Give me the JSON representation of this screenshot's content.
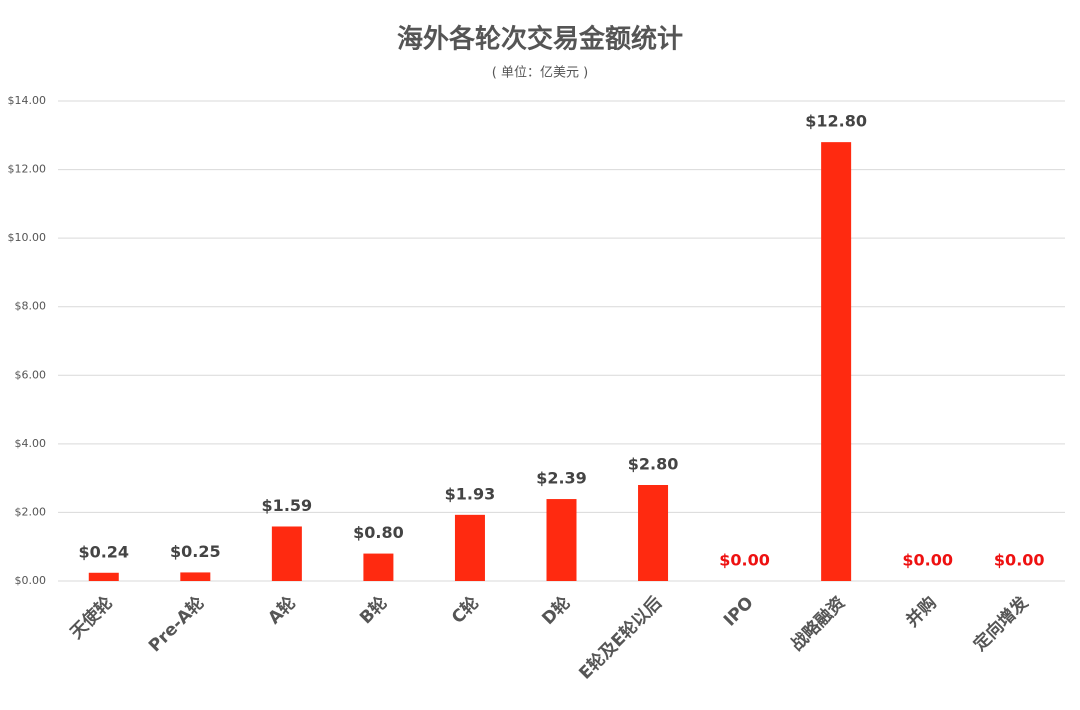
{
  "chart_data": {
    "type": "bar",
    "title": "海外各轮次交易金额统计",
    "subtitle": "( 单位：亿美元 )",
    "categories": [
      "天使轮",
      "Pre-A轮",
      "A轮",
      "B轮",
      "C轮",
      "D轮",
      "E轮及E轮以后",
      "IPO",
      "战略融资",
      "并购",
      "定向增发"
    ],
    "values": [
      0.24,
      0.25,
      1.59,
      0.8,
      1.93,
      2.39,
      2.8,
      0,
      12.8,
      0,
      0
    ],
    "value_labels": [
      "$0.24",
      "$0.25",
      "$1.59",
      "$0.80",
      "$1.93",
      "$2.39",
      "$2.80",
      "$0.00",
      "$12.80",
      "$0.00",
      "$0.00"
    ],
    "color": "#ff2a10",
    "label_color": "#444444",
    "zero_label_color": "#ee1111",
    "ylim": [
      0,
      14
    ],
    "yticks": [
      {
        "value": 0,
        "label": "$0.00"
      },
      {
        "value": 2,
        "label": "$2.00"
      },
      {
        "value": 4,
        "label": "$4.00"
      },
      {
        "value": 6,
        "label": "$6.00"
      },
      {
        "value": 8,
        "label": "$8.00"
      },
      {
        "value": 10,
        "label": "$10.00"
      },
      {
        "value": 12,
        "label": "$12.00"
      },
      {
        "value": 14,
        "label": "$14.00"
      }
    ],
    "grid": true
  }
}
